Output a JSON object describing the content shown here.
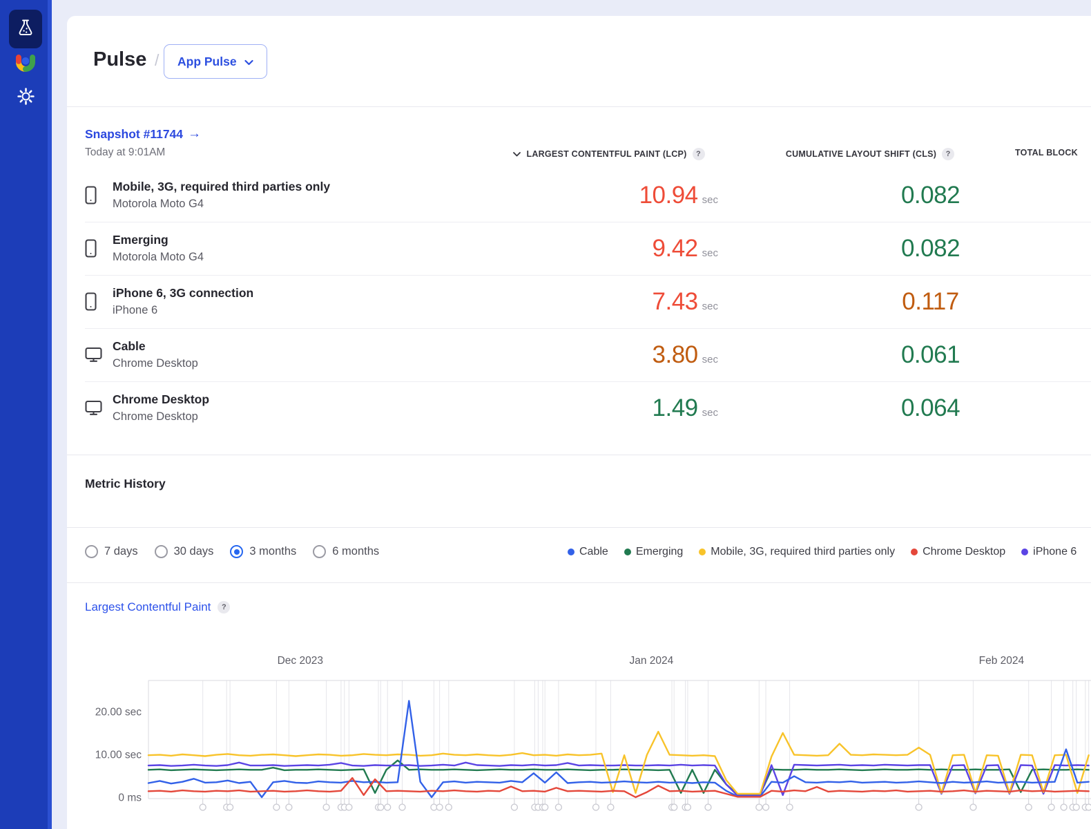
{
  "sidebar": {
    "items": [
      {
        "icon": "lab-flask-icon",
        "active": true
      },
      {
        "icon": "app-logo",
        "active": false
      },
      {
        "icon": "settings-gear-icon",
        "active": false
      }
    ]
  },
  "header": {
    "title": "Pulse",
    "separator": "/",
    "project_selector": {
      "label": "App Pulse"
    }
  },
  "snapshot": {
    "link_label": "Snapshot #11744",
    "arrow": "→",
    "time": "Today at 9:01AM",
    "columns": [
      {
        "label": "LARGEST CONTENTFUL PAINT (LCP)",
        "help": "?",
        "sorted": true
      },
      {
        "label": "CUMULATIVE LAYOUT SHIFT (CLS)",
        "help": "?"
      },
      {
        "label": "TOTAL BLOCK"
      }
    ],
    "rows": [
      {
        "title": "Mobile, 3G, required third parties only",
        "subtitle": "Motorola Moto G4",
        "device_icon": "mobile-icon",
        "lcp": "10.94",
        "lcp_unit": "sec",
        "lcp_color": "#ee4c38",
        "cls": "0.082",
        "cls_color": "#217a50"
      },
      {
        "title": "Emerging",
        "subtitle": "Motorola Moto G4",
        "device_icon": "mobile-icon",
        "lcp": "9.42",
        "lcp_unit": "sec",
        "lcp_color": "#ee4c38",
        "cls": "0.082",
        "cls_color": "#217a50"
      },
      {
        "title": "iPhone 6, 3G connection",
        "subtitle": "iPhone 6",
        "device_icon": "mobile-icon",
        "lcp": "7.43",
        "lcp_unit": "sec",
        "lcp_color": "#ee4c38",
        "cls": "0.117",
        "cls_color": "#c05c10"
      },
      {
        "title": "Cable",
        "subtitle": "Chrome Desktop",
        "device_icon": "desktop-icon",
        "lcp": "3.80",
        "lcp_unit": "sec",
        "lcp_color": "#c05c10",
        "cls": "0.061",
        "cls_color": "#217a50"
      },
      {
        "title": "Chrome Desktop",
        "subtitle": "Chrome Desktop",
        "device_icon": "desktop-icon",
        "lcp": "1.49",
        "lcp_unit": "sec",
        "lcp_color": "#217a50",
        "cls": "0.064",
        "cls_color": "#217a50"
      }
    ]
  },
  "metric_history": {
    "title": "Metric History",
    "ranges": [
      {
        "label": "7 days",
        "selected": false
      },
      {
        "label": "30 days",
        "selected": false
      },
      {
        "label": "3 months",
        "selected": true
      },
      {
        "label": "6 months",
        "selected": false
      }
    ],
    "legend": [
      {
        "label": "Cable",
        "color": "#3261e8"
      },
      {
        "label": "Emerging",
        "color": "#217a50"
      },
      {
        "label": "Mobile, 3G, required third parties only",
        "color": "#f8c32a"
      },
      {
        "label": "Chrome Desktop",
        "color": "#e4473a"
      },
      {
        "label": "iPhone 6",
        "color": "#5b44e4"
      }
    ]
  },
  "chart_section": {
    "title": "Largest Contentful Paint",
    "help": "?"
  },
  "chart_data": {
    "type": "line",
    "title": "Largest Contentful Paint",
    "unit": "sec",
    "x_axis": {
      "labels": [
        {
          "text": "Dec 2023",
          "day": 13.4
        },
        {
          "text": "Jan 2024",
          "day": 44.4
        },
        {
          "text": "Feb 2024",
          "day": 75.3
        }
      ],
      "range_days": 83.2
    },
    "y_axis": {
      "ticks": [
        {
          "label": "0 ms",
          "value": 0
        },
        {
          "label": "10.00 sec",
          "value": 10
        },
        {
          "label": "20.00 sec",
          "value": 20
        }
      ],
      "max": 27
    },
    "markers_days": [
      4.8,
      6.9,
      7.2,
      11.3,
      12.4,
      15.7,
      17.0,
      17.3,
      17.7,
      20.3,
      20.5,
      21.1,
      22.4,
      25.2,
      25.7,
      26.5,
      32.3,
      34.1,
      34.4,
      34.8,
      35.0,
      36.2,
      39.5,
      40.8,
      46.2,
      46.4,
      47.4,
      47.6,
      49.4,
      53.9,
      54.5,
      56.6,
      68.0,
      72.8,
      77.7,
      79.7,
      80.8,
      81.6,
      81.9,
      82.7,
      83.0
    ],
    "series": [
      {
        "name": "Emerging",
        "color": "#217a50",
        "values": [
          6.4,
          6.5,
          6.3,
          6.4,
          6.5,
          6.4,
          6.3,
          6.4,
          6.5,
          6.4,
          6.4,
          6.9,
          6.3,
          6.4,
          6.4,
          6.5,
          6.4,
          6.3,
          6.4,
          6.5,
          1.0,
          6.4,
          8.6,
          6.4,
          6.5,
          6.4,
          6.4,
          6.5,
          6.4,
          6.3,
          6.4,
          6.5,
          6.4,
          6.4,
          6.5,
          6.4,
          6.4,
          6.5,
          6.4,
          6.3,
          6.4,
          6.4,
          6.5,
          6.4,
          6.4,
          6.3,
          6.4,
          1.0,
          6.4,
          1.0,
          6.4,
          3.0,
          0.7,
          0.7,
          0.7,
          6.5,
          6.4,
          6.4,
          6.5,
          6.4,
          6.4,
          6.5,
          6.4,
          6.3,
          6.4,
          6.5,
          6.4,
          6.4,
          6.5,
          6.4,
          6.5,
          6.4,
          6.4,
          6.5,
          6.4,
          6.4,
          6.5,
          1.2,
          6.4,
          6.5,
          6.4,
          6.4,
          6.5,
          6.4
        ]
      },
      {
        "name": "iPhone 6",
        "color": "#5b44e4",
        "values": [
          7.4,
          7.5,
          7.3,
          7.4,
          7.6,
          7.4,
          7.3,
          7.5,
          8.1,
          7.4,
          7.4,
          7.5,
          7.3,
          7.4,
          7.5,
          7.4,
          7.6,
          8.0,
          7.4,
          7.3,
          7.5,
          7.4,
          7.4,
          7.5,
          7.3,
          7.4,
          7.6,
          7.4,
          8.1,
          7.5,
          7.4,
          7.3,
          7.5,
          7.4,
          7.6,
          7.4,
          7.5,
          8.0,
          7.4,
          7.5,
          7.4,
          7.4,
          7.5,
          7.4,
          7.4,
          7.5,
          7.4,
          7.6,
          7.4,
          7.5,
          7.4,
          3.0,
          0.4,
          0.4,
          0.4,
          7.5,
          0.5,
          7.6,
          7.5,
          7.4,
          7.5,
          7.6,
          7.4,
          7.5,
          7.4,
          7.6,
          7.5,
          7.4,
          7.5,
          7.5,
          0.8,
          7.4,
          7.5,
          0.9,
          7.4,
          7.5,
          0.8,
          7.5,
          7.4,
          0.8,
          7.5,
          7.4,
          7.5,
          7.4
        ]
      },
      {
        "name": "Mobile, 3G, required third parties only",
        "color": "#f8c32a",
        "values": [
          9.8,
          9.9,
          9.7,
          10.0,
          9.8,
          9.6,
          9.9,
          10.1,
          9.8,
          9.7,
          9.9,
          10.0,
          9.8,
          9.6,
          9.8,
          10.0,
          9.9,
          9.7,
          9.8,
          10.1,
          9.9,
          9.8,
          10.0,
          9.9,
          9.7,
          9.8,
          10.2,
          9.9,
          9.8,
          10.0,
          9.8,
          9.7,
          9.9,
          10.3,
          9.8,
          9.9,
          9.7,
          10.0,
          9.8,
          9.9,
          10.2,
          1.2,
          9.8,
          1.0,
          9.9,
          15.3,
          9.9,
          9.8,
          9.7,
          9.8,
          9.6,
          4.0,
          0.8,
          0.8,
          0.8,
          9.5,
          15.0,
          9.9,
          9.8,
          9.7,
          9.8,
          12.5,
          9.9,
          9.8,
          10.0,
          9.9,
          9.8,
          9.9,
          11.6,
          9.9,
          1.0,
          9.8,
          9.9,
          1.1,
          9.8,
          9.7,
          1.0,
          9.9,
          9.8,
          1.2,
          9.8,
          9.9,
          1.0,
          9.8
        ]
      },
      {
        "name": "Cable",
        "color": "#3261e8",
        "values": [
          3.3,
          3.8,
          3.2,
          3.6,
          4.3,
          3.4,
          3.5,
          3.9,
          3.3,
          3.6,
          0.0,
          3.5,
          3.8,
          3.4,
          3.3,
          3.7,
          3.5,
          3.4,
          3.8,
          3.5,
          3.6,
          3.4,
          3.5,
          22.5,
          3.6,
          0.0,
          3.5,
          3.7,
          3.4,
          3.6,
          3.5,
          3.4,
          3.8,
          3.5,
          5.6,
          3.4,
          5.8,
          3.3,
          3.5,
          3.6,
          3.4,
          3.5,
          3.7,
          3.5,
          3.4,
          3.6,
          3.4,
          3.5,
          3.3,
          3.5,
          3.4,
          1.5,
          0.2,
          0.2,
          0.2,
          3.6,
          3.4,
          4.9,
          3.5,
          3.4,
          3.6,
          3.5,
          3.7,
          3.4,
          3.5,
          3.6,
          3.4,
          3.5,
          3.7,
          3.5,
          3.3,
          3.6,
          3.4,
          3.5,
          3.7,
          3.4,
          3.5,
          3.6,
          3.4,
          3.5,
          3.6,
          11.2,
          3.4,
          3.6
        ]
      },
      {
        "name": "Chrome Desktop",
        "color": "#e4473a",
        "values": [
          1.4,
          1.5,
          1.3,
          1.6,
          1.4,
          1.3,
          1.5,
          1.4,
          1.6,
          1.3,
          1.4,
          1.5,
          1.3,
          1.4,
          1.6,
          1.4,
          1.3,
          1.5,
          4.5,
          0.5,
          4.2,
          1.4,
          1.5,
          1.4,
          1.3,
          1.5,
          1.4,
          1.6,
          1.4,
          1.3,
          1.5,
          1.4,
          2.5,
          1.4,
          1.5,
          1.3,
          2.2,
          1.4,
          1.5,
          1.4,
          1.3,
          1.5,
          1.4,
          0.0,
          1.2,
          2.7,
          1.4,
          1.5,
          1.3,
          1.4,
          1.5,
          0.8,
          0.1,
          0.1,
          0.1,
          1.5,
          1.3,
          1.6,
          1.4,
          2.4,
          1.3,
          1.5,
          1.4,
          1.3,
          1.5,
          1.4,
          1.6,
          1.3,
          1.4,
          1.5,
          1.3,
          1.4,
          1.6,
          1.3,
          1.5,
          1.4,
          1.3,
          1.6,
          1.4,
          1.5,
          1.3,
          1.4,
          1.5,
          1.4
        ]
      }
    ]
  }
}
